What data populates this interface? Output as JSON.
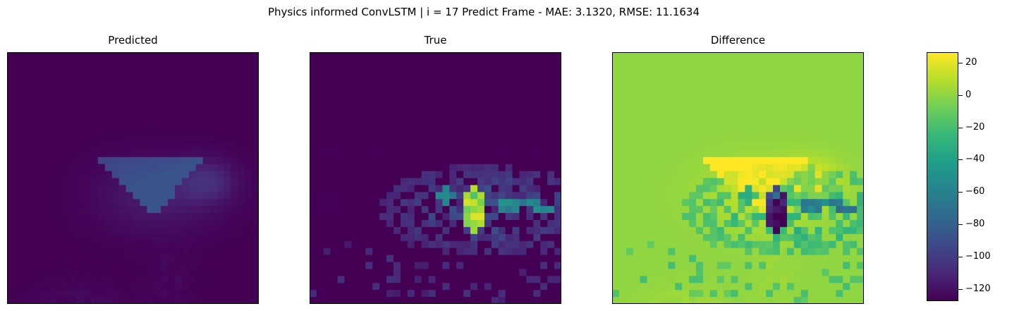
{
  "chart_data": {
    "type": "heatmap",
    "title": "Physics informed ConvLSTM | i = 17 Predict Frame - MAE: 3.1320, RMSE: 11.1634",
    "panels": [
      {
        "title": "Predicted"
      },
      {
        "title": "True"
      },
      {
        "title": "Difference"
      }
    ],
    "grid": false,
    "colormap": "viridis",
    "colorbar": {
      "vmin": -127,
      "vmax": 26,
      "ticks": [
        20,
        0,
        -20,
        -40,
        -60,
        -80,
        -100,
        -120
      ],
      "tick_labels": [
        "20",
        "0",
        "−20",
        "−40",
        "−60",
        "−80",
        "−100",
        "−120"
      ]
    }
  }
}
